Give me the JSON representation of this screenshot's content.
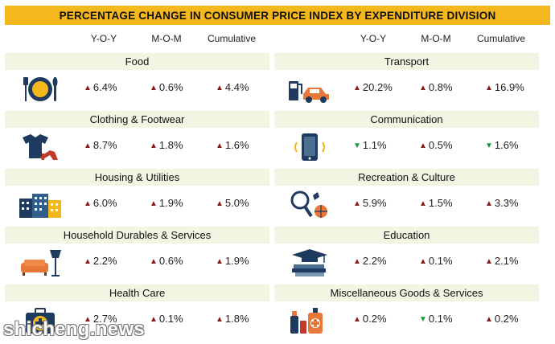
{
  "header": {
    "title": "PERCENTAGE CHANGE IN CONSUMER PRICE INDEX BY EXPENDITURE DIVISION"
  },
  "columns": [
    "Y-O-Y",
    "M-O-M",
    "Cumulative"
  ],
  "colors": {
    "title_bar": "#f5b81c",
    "category_bar": "#f3f4e2",
    "increase": "#8b1a1a",
    "decrease": "#159a3c"
  },
  "chart_data": {
    "type": "table",
    "title": "PERCENTAGE CHANGE IN CONSUMER PRICE INDEX BY EXPENDITURE DIVISION",
    "columns": [
      "Y-O-Y",
      "M-O-M",
      "Cumulative"
    ],
    "rows": [
      {
        "category": "Food",
        "icon": "food-plate-icon",
        "yoy": {
          "text": "6.4%",
          "dir": "up"
        },
        "mom": {
          "text": "0.6%",
          "dir": "up"
        },
        "cum": {
          "text": "4.4%",
          "dir": "up"
        }
      },
      {
        "category": "Clothing & Footwear",
        "icon": "clothing-icon",
        "yoy": {
          "text": "8.7%",
          "dir": "up"
        },
        "mom": {
          "text": "1.8%",
          "dir": "up"
        },
        "cum": {
          "text": "1.6%",
          "dir": "up"
        }
      },
      {
        "category": "Housing & Utilities",
        "icon": "housing-icon",
        "yoy": {
          "text": "6.0%",
          "dir": "up"
        },
        "mom": {
          "text": "1.9%",
          "dir": "up"
        },
        "cum": {
          "text": "5.0%",
          "dir": "up"
        }
      },
      {
        "category": "Household Durables & Services",
        "icon": "sofa-lamp-icon",
        "yoy": {
          "text": "2.2%",
          "dir": "up"
        },
        "mom": {
          "text": "0.6%",
          "dir": "up"
        },
        "cum": {
          "text": "1.9%",
          "dir": "up"
        }
      },
      {
        "category": "Health Care",
        "icon": "first-aid-kit-icon",
        "yoy": {
          "text": "2.7%",
          "dir": "up"
        },
        "mom": {
          "text": "0.1%",
          "dir": "up"
        },
        "cum": {
          "text": "1.8%",
          "dir": "up"
        }
      },
      {
        "category": "Transport",
        "icon": "fuel-car-icon",
        "yoy": {
          "text": "20.2%",
          "dir": "up"
        },
        "mom": {
          "text": "0.8%",
          "dir": "up"
        },
        "cum": {
          "text": "16.9%",
          "dir": "up"
        }
      },
      {
        "category": "Communication",
        "icon": "mobile-phone-icon",
        "yoy": {
          "text": "1.1%",
          "dir": "down"
        },
        "mom": {
          "text": "0.5%",
          "dir": "up"
        },
        "cum": {
          "text": "1.6%",
          "dir": "down"
        }
      },
      {
        "category": "Recreation & Culture",
        "icon": "sports-ball-icon",
        "yoy": {
          "text": "5.9%",
          "dir": "up"
        },
        "mom": {
          "text": "1.5%",
          "dir": "up"
        },
        "cum": {
          "text": "3.3%",
          "dir": "up"
        }
      },
      {
        "category": "Education",
        "icon": "graduation-cap-books-icon",
        "yoy": {
          "text": "2.2%",
          "dir": "up"
        },
        "mom": {
          "text": "0.1%",
          "dir": "up"
        },
        "cum": {
          "text": "2.1%",
          "dir": "up"
        }
      },
      {
        "category": "Miscellaneous Goods & Services",
        "icon": "cosmetics-icon",
        "yoy": {
          "text": "0.2%",
          "dir": "up"
        },
        "mom": {
          "text": "0.1%",
          "dir": "down"
        },
        "cum": {
          "text": "0.2%",
          "dir": "up"
        }
      }
    ]
  },
  "watermark": "shicheng.news"
}
